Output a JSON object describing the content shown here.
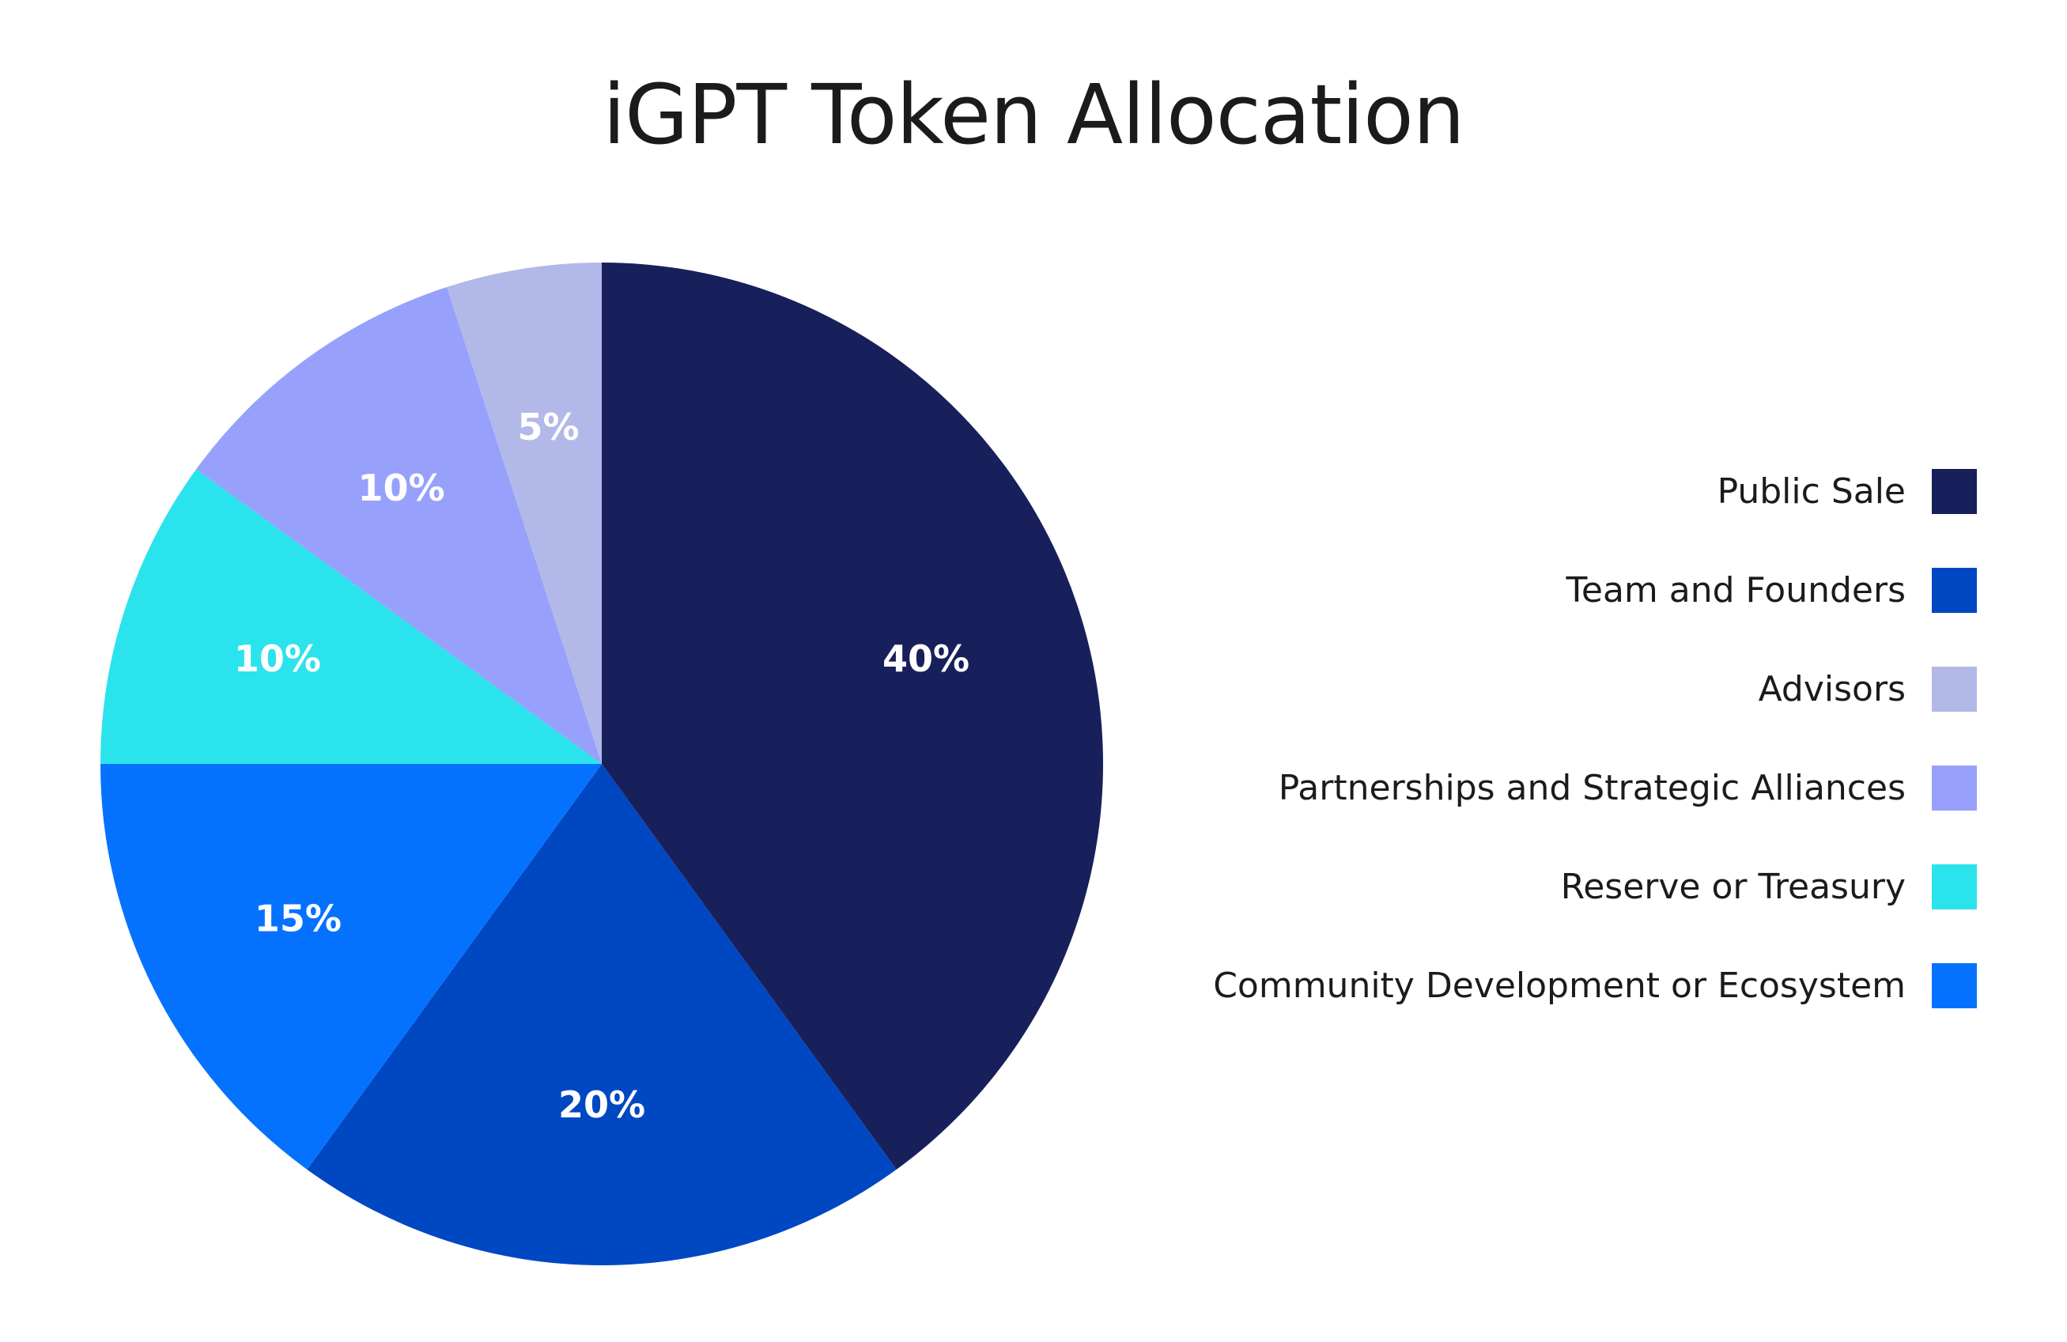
{
  "chart_data": {
    "type": "pie",
    "title": "iGPT Token Allocation",
    "slices": [
      {
        "name": "Public Sale",
        "value": 40,
        "label": "40%",
        "color": "#18205b"
      },
      {
        "name": "Team and Founders",
        "value": 20,
        "label": "20%",
        "color": "#0047c2"
      },
      {
        "name": "Community Development or Ecosystem",
        "value": 15,
        "label": "15%",
        "color": "#0572ff"
      },
      {
        "name": "Reserve or Treasury",
        "value": 10,
        "label": "10%",
        "color": "#2be3ec"
      },
      {
        "name": "Partnerships and Strategic Alliances",
        "value": 10,
        "label": "10%",
        "color": "#97a1fc"
      },
      {
        "name": "Advisors",
        "value": 5,
        "label": "5%",
        "color": "#b2b9e8"
      }
    ],
    "legend_order": [
      "Public Sale",
      "Team and Founders",
      "Advisors",
      "Partnerships and Strategic Alliances",
      "Reserve or Treasury",
      "Community Development or Ecosystem"
    ],
    "legend_position": "right",
    "direction": "clockwise",
    "start": "top"
  }
}
